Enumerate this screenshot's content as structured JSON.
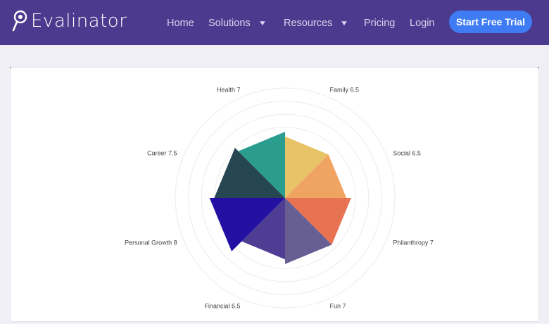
{
  "brand": {
    "name": "Evalinator"
  },
  "nav": {
    "home": "Home",
    "solutions": "Solutions",
    "resources": "Resources",
    "pricing": "Pricing",
    "login": "Login",
    "caret": "▼"
  },
  "cta": {
    "label": "Start Free Trial"
  },
  "colors": {
    "header": "#4b3a8e",
    "cta": "#3f7cf4",
    "background": "#efeff5"
  },
  "chart_data": {
    "type": "polar-area",
    "scale_max": 10,
    "segments": [
      {
        "label": "Family 6.5",
        "name": "Family",
        "value": 6.5,
        "color": "#e8c266"
      },
      {
        "label": "Social 6.5",
        "name": "Social",
        "value": 6.5,
        "color": "#f0a462"
      },
      {
        "label": "Philanthropy 7",
        "name": "Philanthropy",
        "value": 7,
        "color": "#e87353"
      },
      {
        "label": "Fun 7",
        "name": "Fun",
        "value": 7,
        "color": "#675f93"
      },
      {
        "label": "Financial 6.5",
        "name": "Financial",
        "value": 6.5,
        "color": "#4f3c93"
      },
      {
        "label": "Personal Growth 8",
        "name": "Personal Growth",
        "value": 8,
        "color": "#2310a3"
      },
      {
        "label": "Career 7.5",
        "name": "Career",
        "value": 7.5,
        "color": "#264652"
      },
      {
        "label": "Health 7",
        "name": "Health",
        "value": 7,
        "color": "#2a9d8f"
      }
    ]
  }
}
